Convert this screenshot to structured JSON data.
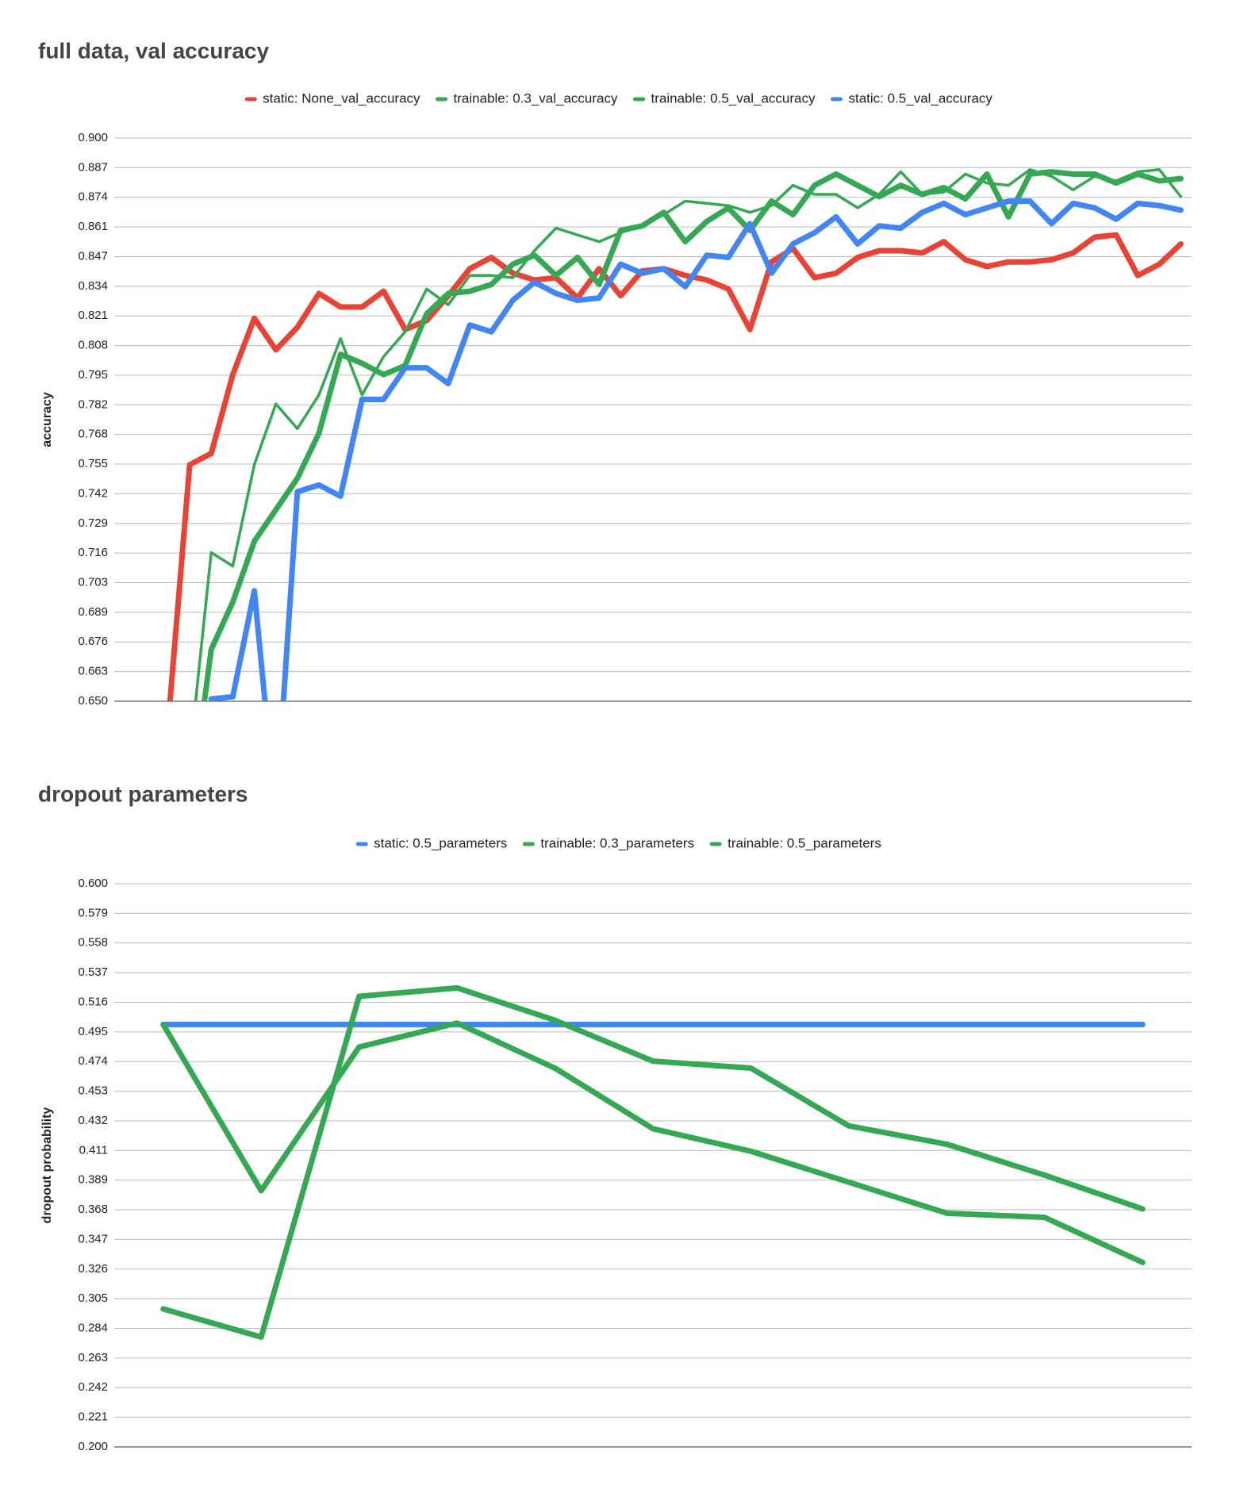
{
  "chart_data": [
    {
      "type": "line",
      "title": "full data, val accuracy",
      "y_label": "accuracy",
      "categories": [
        null,
        null,
        null,
        null,
        null,
        null,
        null,
        null,
        null,
        null,
        null,
        null,
        null,
        null,
        null,
        null,
        null,
        null,
        null,
        null,
        null,
        null,
        null,
        null,
        null,
        null,
        null,
        null,
        null,
        null,
        null,
        null,
        null,
        null,
        null,
        null,
        null,
        null,
        null,
        null,
        null,
        null,
        null,
        null,
        null,
        null,
        null,
        null,
        null,
        null
      ],
      "series": [
        {
          "name": "static: None_val_accuracy",
          "color": "#ea4335",
          "line_width": 7,
          "values": [
            null,
            null,
            0.64,
            0.755,
            0.76,
            0.795,
            0.82,
            0.806,
            0.816,
            0.831,
            0.825,
            0.825,
            0.832,
            0.815,
            0.819,
            0.83,
            0.842,
            0.847,
            0.84,
            0.837,
            0.838,
            0.829,
            0.842,
            0.83,
            0.841,
            0.842,
            0.839,
            0.837,
            0.833,
            0.815,
            0.845,
            0.851,
            0.838,
            0.84,
            0.847,
            0.85,
            0.85,
            0.849,
            0.854,
            0.846,
            0.843,
            0.845,
            0.845,
            0.846,
            0.849,
            0.856,
            0.857,
            0.839,
            0.844,
            0.853
          ]
        },
        {
          "name": "trainable: 0.3_val_accuracy",
          "color": "#34a853",
          "line_width": 3.5,
          "values": [
            null,
            null,
            null,
            0.625,
            0.716,
            0.71,
            0.755,
            0.782,
            0.771,
            0.786,
            0.811,
            0.786,
            0.803,
            0.814,
            0.833,
            0.826,
            0.839,
            0.839,
            0.838,
            0.85,
            0.86,
            0.857,
            0.854,
            0.858,
            0.861,
            0.866,
            0.872,
            0.871,
            0.87,
            0.867,
            0.87,
            0.879,
            0.875,
            0.875,
            0.869,
            0.875,
            0.885,
            0.875,
            0.876,
            0.884,
            0.88,
            0.879,
            0.886,
            0.883,
            0.877,
            0.883,
            0.881,
            0.885,
            0.886,
            0.874
          ]
        },
        {
          "name": "trainable: 0.5_val_accuracy",
          "color": "#34a853",
          "line_width": 7,
          "values": [
            null,
            null,
            null,
            0.6,
            0.673,
            0.694,
            0.721,
            0.735,
            0.749,
            0.769,
            0.804,
            0.8,
            0.795,
            0.799,
            0.822,
            0.831,
            0.832,
            0.835,
            0.844,
            0.848,
            0.839,
            0.847,
            0.835,
            0.859,
            0.861,
            0.867,
            0.854,
            0.863,
            0.869,
            0.859,
            0.872,
            0.866,
            0.879,
            0.884,
            0.879,
            0.874,
            0.879,
            0.875,
            0.878,
            0.873,
            0.884,
            0.865,
            0.884,
            0.885,
            0.884,
            0.884,
            0.88,
            0.884,
            0.881,
            0.882
          ]
        },
        {
          "name": "static: 0.5_val_accuracy",
          "color": "#4285f4",
          "line_width": 7,
          "values": [
            null,
            null,
            null,
            null,
            0.651,
            0.652,
            0.699,
            0.6,
            0.743,
            0.746,
            0.741,
            0.784,
            0.784,
            0.798,
            0.798,
            0.791,
            0.817,
            0.814,
            0.828,
            0.836,
            0.831,
            0.828,
            0.829,
            0.844,
            0.84,
            0.842,
            0.834,
            0.848,
            0.847,
            0.862,
            0.84,
            0.853,
            0.858,
            0.865,
            0.853,
            0.861,
            0.86,
            0.867,
            0.871,
            0.866,
            0.869,
            0.872,
            0.872,
            0.862,
            0.871,
            0.869,
            0.864,
            0.871,
            0.87,
            0.868
          ]
        }
      ],
      "ylim": [
        0.65,
        0.9
      ],
      "yticks": [
        {
          "value": 0.65,
          "label": "0.650"
        },
        {
          "value": 0.663158,
          "label": "0.663"
        },
        {
          "value": 0.676316,
          "label": "0.676"
        },
        {
          "value": 0.689474,
          "label": "0.689"
        },
        {
          "value": 0.702632,
          "label": "0.703"
        },
        {
          "value": 0.715789,
          "label": "0.716"
        },
        {
          "value": 0.728947,
          "label": "0.729"
        },
        {
          "value": 0.742105,
          "label": "0.742"
        },
        {
          "value": 0.755263,
          "label": "0.755"
        },
        {
          "value": 0.768421,
          "label": "0.768"
        },
        {
          "value": 0.781579,
          "label": "0.782"
        },
        {
          "value": 0.794737,
          "label": "0.795"
        },
        {
          "value": 0.807895,
          "label": "0.808"
        },
        {
          "value": 0.821053,
          "label": "0.821"
        },
        {
          "value": 0.834211,
          "label": "0.834"
        },
        {
          "value": 0.847368,
          "label": "0.847"
        },
        {
          "value": 0.860526,
          "label": "0.861"
        },
        {
          "value": 0.873684,
          "label": "0.874"
        },
        {
          "value": 0.886842,
          "label": "0.887"
        },
        {
          "value": 0.9,
          "label": "0.900"
        }
      ],
      "grid": true,
      "legend": "top"
    },
    {
      "type": "line",
      "title": "dropout parameters",
      "y_label": "dropout probability",
      "categories": [
        null,
        null,
        null,
        null,
        null,
        null,
        null,
        null,
        null,
        null,
        null
      ],
      "series": [
        {
          "name": "static: 0.5_parameters",
          "color": "#4285f4",
          "line_width": 7,
          "values": [
            0.5,
            0.5,
            0.5,
            0.5,
            0.5,
            0.5,
            0.5,
            0.5,
            0.5,
            0.5,
            0.5
          ]
        },
        {
          "name": "trainable: 0.3_parameters",
          "color": "#34a853",
          "line_width": 7,
          "values": [
            0.298,
            0.278,
            0.52,
            0.526,
            0.503,
            0.474,
            0.469,
            0.428,
            0.415,
            0.393,
            0.369
          ]
        },
        {
          "name": "trainable: 0.5_parameters",
          "color": "#34a853",
          "line_width": 7,
          "values": [
            0.5,
            0.382,
            0.484,
            0.501,
            0.469,
            0.426,
            0.41,
            0.388,
            0.366,
            0.363,
            0.331
          ]
        }
      ],
      "ylim": [
        0.2,
        0.6
      ],
      "yticks": [
        {
          "value": 0.2,
          "label": "0.200"
        },
        {
          "value": 0.221053,
          "label": "0.221"
        },
        {
          "value": 0.242105,
          "label": "0.242"
        },
        {
          "value": 0.263158,
          "label": "0.263"
        },
        {
          "value": 0.284211,
          "label": "0.284"
        },
        {
          "value": 0.305263,
          "label": "0.305"
        },
        {
          "value": 0.326316,
          "label": "0.326"
        },
        {
          "value": 0.347368,
          "label": "0.347"
        },
        {
          "value": 0.368421,
          "label": "0.368"
        },
        {
          "value": 0.389474,
          "label": "0.389"
        },
        {
          "value": 0.410526,
          "label": "0.411"
        },
        {
          "value": 0.431579,
          "label": "0.432"
        },
        {
          "value": 0.452632,
          "label": "0.453"
        },
        {
          "value": 0.473684,
          "label": "0.474"
        },
        {
          "value": 0.494737,
          "label": "0.495"
        },
        {
          "value": 0.515789,
          "label": "0.516"
        },
        {
          "value": 0.536842,
          "label": "0.537"
        },
        {
          "value": 0.557895,
          "label": "0.558"
        },
        {
          "value": 0.578947,
          "label": "0.579"
        },
        {
          "value": 0.6,
          "label": "0.600"
        }
      ],
      "grid": true,
      "legend": "top"
    }
  ]
}
